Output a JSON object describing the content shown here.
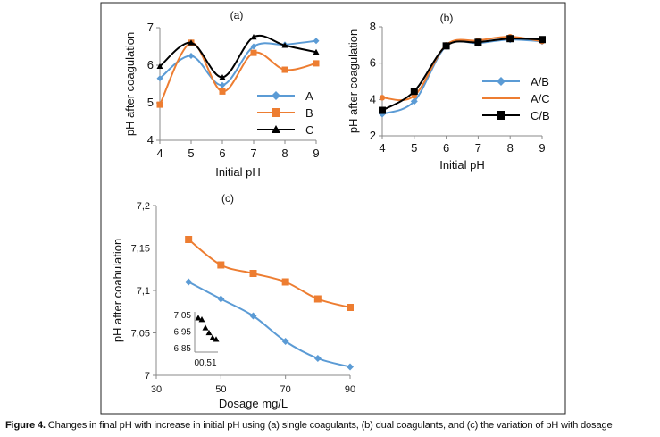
{
  "caption": {
    "label": "Figure 4.",
    "text": " Changes in final pH with increase in initial pH using (a) single coagulants, (b) dual coagulants, and (c) the variation of pH with dosage"
  },
  "chart_data": [
    {
      "type": "line",
      "title": "(a)",
      "xlabel": "Initial pH",
      "ylabel": "pH after coagulation",
      "x": [
        4,
        5,
        6,
        7,
        8,
        9
      ],
      "xlim": [
        4,
        9
      ],
      "ylim": [
        4,
        7
      ],
      "yticks": [
        4,
        5,
        6,
        7
      ],
      "xticks": [
        4,
        5,
        6,
        7,
        8,
        9
      ],
      "legend": "right",
      "series": [
        {
          "name": "A",
          "color": "#5b9bd5",
          "marker": "diamond",
          "values": [
            5.65,
            6.25,
            5.47,
            6.5,
            6.55,
            6.65
          ]
        },
        {
          "name": "B",
          "color": "#ed7d31",
          "marker": "square",
          "values": [
            4.95,
            6.6,
            5.3,
            6.33,
            5.88,
            6.05
          ]
        },
        {
          "name": "C",
          "color": "#000000",
          "marker": "triangle",
          "values": [
            5.97,
            6.6,
            5.68,
            6.75,
            6.53,
            6.35
          ]
        }
      ]
    },
    {
      "type": "line",
      "title": "(b)",
      "xlabel": "Initial pH",
      "ylabel": "pH after coagulation",
      "x": [
        4,
        5,
        6,
        7,
        8,
        9
      ],
      "xlim": [
        4,
        9
      ],
      "ylim": [
        2,
        8
      ],
      "yticks": [
        2,
        4,
        6,
        8
      ],
      "xticks": [
        4,
        5,
        6,
        7,
        8,
        9
      ],
      "legend": "right",
      "series": [
        {
          "name": "A/B",
          "color": "#5b9bd5",
          "marker": "diamond",
          "values": [
            3.2,
            3.9,
            6.95,
            7.1,
            7.3,
            7.2
          ]
        },
        {
          "name": "A/C",
          "color": "#ed7d31",
          "marker": "circle",
          "values": [
            4.1,
            4.2,
            7.0,
            7.25,
            7.45,
            7.2
          ]
        },
        {
          "name": "C/B",
          "color": "#000000",
          "marker": "square",
          "values": [
            3.4,
            4.45,
            6.95,
            7.15,
            7.35,
            7.3
          ]
        }
      ]
    },
    {
      "type": "line",
      "title": "(c)",
      "xlabel": "Dosage mg/L",
      "ylabel": "pH after coahulation",
      "x": [
        40,
        50,
        60,
        70,
        80,
        90
      ],
      "xlim": [
        30,
        90
      ],
      "ylim": [
        7,
        7.2
      ],
      "yticks": [
        "7",
        "7,05",
        "7,1",
        "7,15",
        "7,2"
      ],
      "xticks": [
        "30",
        "50",
        "70",
        "90"
      ],
      "series": [
        {
          "name": "orange",
          "color": "#ed7d31",
          "marker": "square",
          "values": [
            7.16,
            7.13,
            7.12,
            7.11,
            7.09,
            7.08
          ]
        },
        {
          "name": "blue",
          "color": "#5b9bd5",
          "marker": "diamond",
          "values": [
            7.11,
            7.09,
            7.07,
            7.04,
            7.02,
            7.01
          ]
        }
      ],
      "inset": {
        "yticks": [
          "6,85",
          "6,95",
          "7,05"
        ],
        "ylim": [
          6.85,
          7.05
        ],
        "xlabel": "00,51",
        "series": [
          {
            "name": "black",
            "color": "#000000",
            "marker": "triangle",
            "values": [
              7.03,
              7.02,
              6.97,
              6.94,
              6.91,
              6.9
            ]
          }
        ]
      }
    }
  ]
}
